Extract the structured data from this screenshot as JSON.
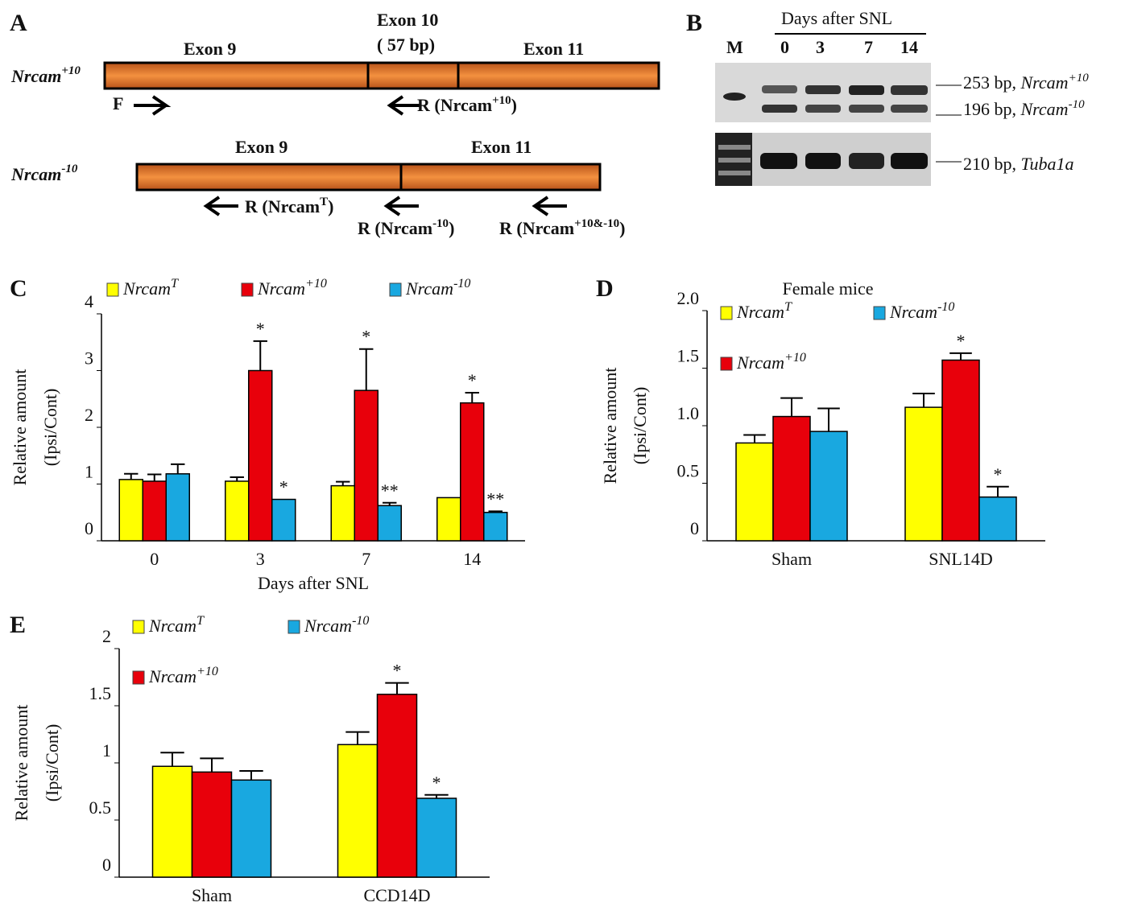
{
  "diagram": {
    "panel_a": "A",
    "top": {
      "label": "Nrcam",
      "sup": "+10",
      "exon9": "Exon  9",
      "exon10": "Exon  10",
      "exon10_size": "( 57 bp)",
      "exon11": "Exon  11",
      "primer_f": "F",
      "primer_r": "R (Nrcam",
      "primer_r_sup": "+10",
      "close": ")"
    },
    "bottom": {
      "label": "Nrcam",
      "sup": "-10",
      "exon9": "Exon  9",
      "exon11": "Exon  11",
      "primers": [
        {
          "text": "R (Nrcam",
          "sup": "T",
          "close": ")"
        },
        {
          "text": "R (Nrcam",
          "sup": "-10",
          "close": ")"
        },
        {
          "text": "R (Nrcam",
          "sup": "+10&-10",
          "close": ")"
        }
      ]
    }
  },
  "gel": {
    "panel": "B",
    "marker": "M",
    "header": "Days after SNL",
    "lanes": [
      "0",
      "3",
      "7",
      "14"
    ],
    "bands": [
      {
        "size": "253 bp, ",
        "gene": "Nrcam",
        "sup": "+10"
      },
      {
        "size": "196 bp, ",
        "gene": "Nrcam",
        "sup": "-10"
      },
      {
        "size": "210 bp, ",
        "gene": "Tuba1a",
        "sup": null
      }
    ]
  },
  "chart_data": [
    {
      "type": "bar",
      "panel": "C",
      "categories": [
        "0",
        "3",
        "7",
        "14"
      ],
      "xlabel": "Days after SNL",
      "ylabel": [
        "Relative  amount",
        "(Ipsi/Cont)"
      ],
      "ylim": [
        0,
        4
      ],
      "yticks": [
        0,
        1,
        2,
        3,
        4
      ],
      "series": [
        {
          "name": "Nrcam",
          "sup": "T",
          "color": "#ffff00",
          "values": [
            1.08,
            1.05,
            0.97,
            0.76
          ],
          "errors": [
            0.1,
            0.07,
            0.07,
            0
          ],
          "stars": [
            null,
            null,
            null,
            null
          ]
        },
        {
          "name": "Nrcam",
          "sup": "+10",
          "color": "#e8000b",
          "values": [
            1.05,
            3.0,
            2.65,
            2.43
          ],
          "errors": [
            0.12,
            0.52,
            0.73,
            0.18
          ],
          "stars": [
            null,
            "*",
            "*",
            "*"
          ]
        },
        {
          "name": "Nrcam",
          "sup": "-10",
          "color": "#19a8e0",
          "values": [
            1.18,
            0.73,
            0.62,
            0.5
          ],
          "errors": [
            0.17,
            0,
            0.05,
            0.02
          ],
          "stars": [
            null,
            "*",
            "**",
            "**"
          ]
        }
      ]
    },
    {
      "type": "bar",
      "panel": "D",
      "title": "Female mice",
      "categories": [
        "Sham",
        "SNL14D"
      ],
      "ylabel": [
        "Relative  amount",
        "(Ipsi/Cont)"
      ],
      "ylim": [
        0,
        2
      ],
      "yticks": [
        0,
        0.5,
        {
          "value": 1,
          "label": "1.0"
        },
        1.5,
        {
          "value": 2,
          "label": "2.0"
        }
      ],
      "series": [
        {
          "name": "Nrcam",
          "sup": "T",
          "color": "#ffff00",
          "values": [
            0.85,
            1.16
          ],
          "errors": [
            0.07,
            0.12
          ],
          "stars": [
            null,
            null
          ]
        },
        {
          "name": "Nrcam",
          "sup": "+10",
          "color": "#e8000b",
          "values": [
            1.08,
            1.57
          ],
          "errors": [
            0.16,
            0.06
          ],
          "stars": [
            null,
            "*"
          ]
        },
        {
          "name": "Nrcam",
          "sup": "-10",
          "color": "#19a8e0",
          "values": [
            0.95,
            0.38
          ],
          "errors": [
            0.2,
            0.09
          ],
          "stars": [
            null,
            "*"
          ]
        }
      ]
    },
    {
      "type": "bar",
      "panel": "E",
      "categories": [
        "Sham",
        "CCD14D"
      ],
      "ylabel": [
        "Relative  amount",
        "(Ipsi/Cont)"
      ],
      "ylim": [
        0,
        2
      ],
      "yticks": [
        0,
        0.5,
        1,
        1.5,
        2
      ],
      "series": [
        {
          "name": "Nrcam",
          "sup": "T",
          "color": "#ffff00",
          "values": [
            0.97,
            1.16
          ],
          "errors": [
            0.12,
            0.11
          ],
          "stars": [
            null,
            null
          ]
        },
        {
          "name": "Nrcam",
          "sup": "+10",
          "color": "#e8000b",
          "values": [
            0.92,
            1.6
          ],
          "errors": [
            0.12,
            0.1
          ],
          "stars": [
            null,
            "*"
          ]
        },
        {
          "name": "Nrcam",
          "sup": "-10",
          "color": "#19a8e0",
          "values": [
            0.85,
            0.69
          ],
          "errors": [
            0.08,
            0.03
          ],
          "stars": [
            null,
            "*"
          ]
        }
      ]
    }
  ]
}
